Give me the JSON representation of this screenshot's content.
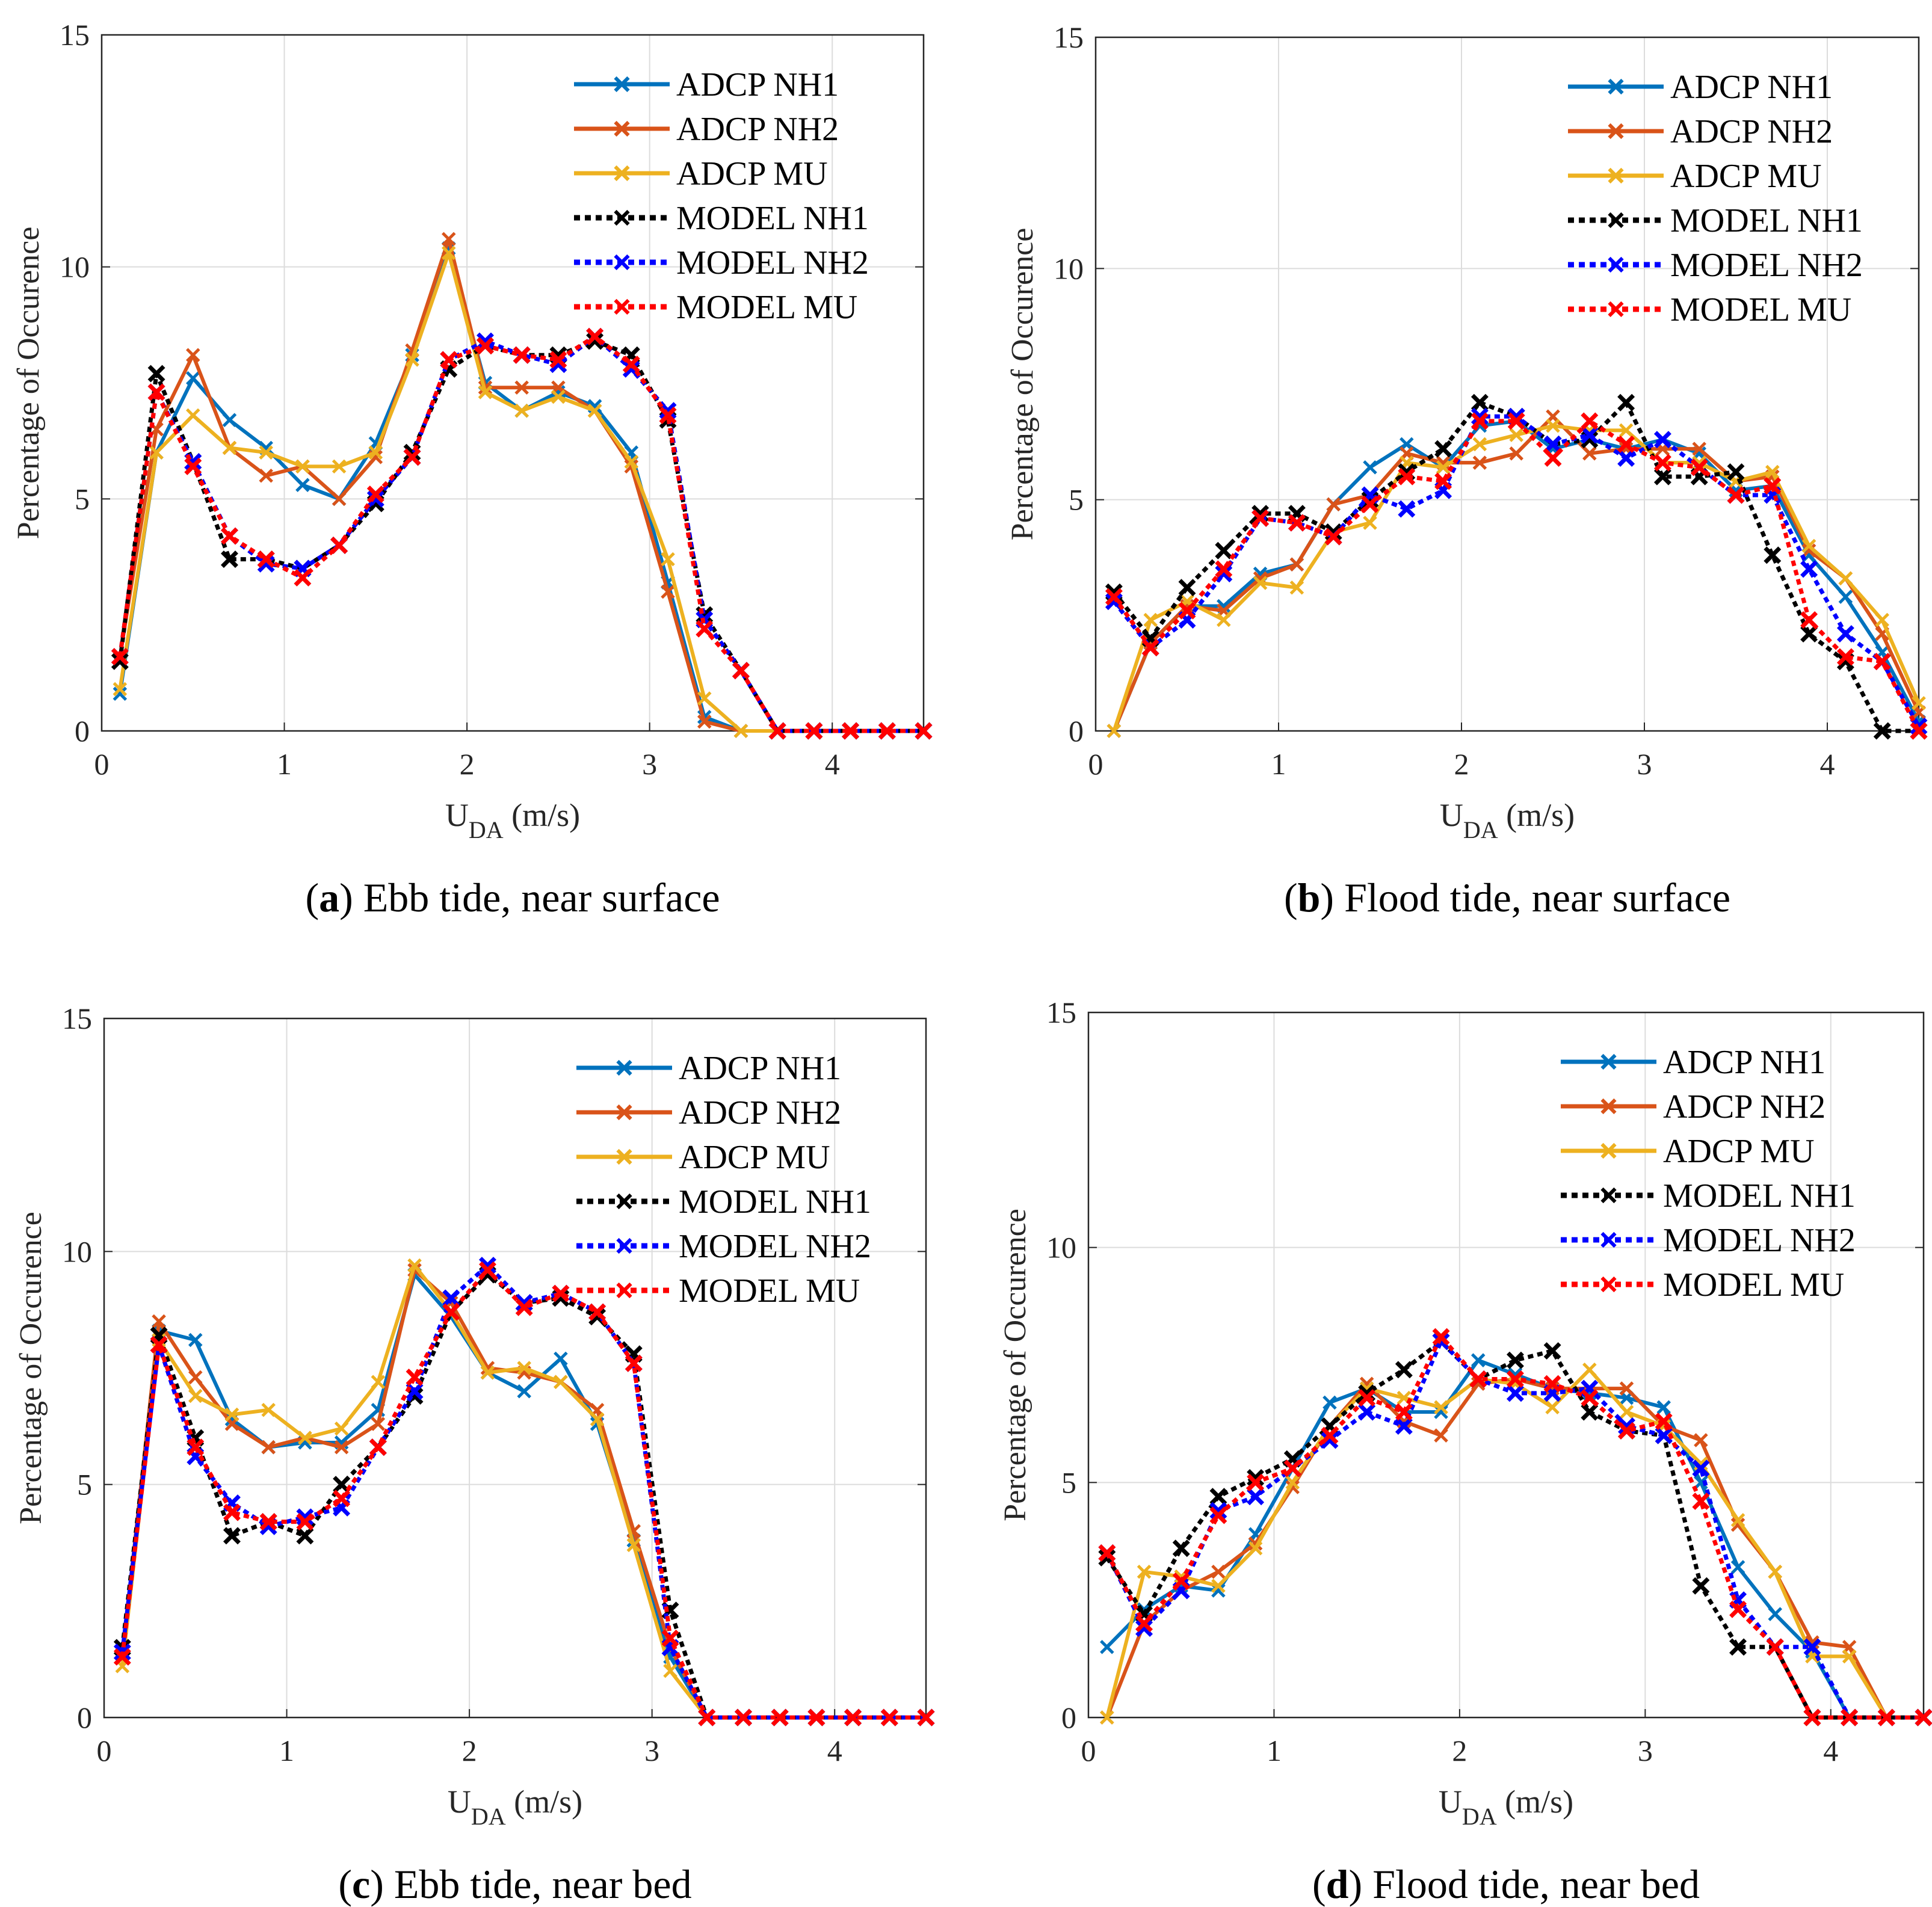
{
  "chart_data": [
    {
      "id": "a",
      "type": "line",
      "caption_letter": "a",
      "caption_text": " Ebb tide, near surface",
      "xlabel_main": "U",
      "xlabel_sub": "DA",
      "xlabel_unit": " (m/s)",
      "ylabel": "Percentage of Occurence",
      "xlim": [
        0,
        4.5
      ],
      "ylim": [
        0,
        15
      ],
      "xticks": [
        0,
        1,
        2,
        3,
        4
      ],
      "yticks": [
        0,
        5,
        10,
        15
      ],
      "grid": true,
      "legend_position": "top-right",
      "x": [
        0.1,
        0.3,
        0.5,
        0.7,
        0.9,
        1.1,
        1.3,
        1.5,
        1.7,
        1.9,
        2.1,
        2.3,
        2.5,
        2.7,
        2.9,
        3.1,
        3.3,
        3.5,
        3.7,
        3.9,
        4.1,
        4.3,
        4.5
      ],
      "series": [
        {
          "name": "ADCP NH1",
          "color": "#0072BD",
          "style": "solid",
          "values": [
            0.8,
            6.0,
            7.6,
            6.7,
            6.1,
            5.3,
            5.0,
            6.2,
            8.1,
            10.4,
            7.5,
            6.9,
            7.3,
            7.0,
            6.0,
            3.2,
            0.3,
            0,
            0,
            0,
            0,
            0,
            0
          ]
        },
        {
          "name": "ADCP NH2",
          "color": "#D95319",
          "style": "solid",
          "values": [
            1.6,
            6.5,
            8.1,
            6.1,
            5.5,
            5.7,
            5.0,
            5.9,
            8.2,
            10.6,
            7.4,
            7.4,
            7.4,
            6.9,
            5.7,
            3.0,
            0.2,
            0,
            0,
            0,
            0,
            0,
            0
          ]
        },
        {
          "name": "ADCP MU",
          "color": "#EDB120",
          "style": "solid",
          "values": [
            0.9,
            6.0,
            6.8,
            6.1,
            6.0,
            5.7,
            5.7,
            6.0,
            8.0,
            10.3,
            7.3,
            6.9,
            7.2,
            6.9,
            5.8,
            3.7,
            0.7,
            0,
            0,
            0,
            0,
            0,
            0
          ]
        },
        {
          "name": "MODEL NH1",
          "color": "#000000",
          "style": "dotted",
          "values": [
            1.5,
            7.7,
            5.8,
            3.7,
            3.7,
            3.5,
            4.0,
            4.9,
            6.0,
            7.8,
            8.3,
            8.1,
            8.1,
            8.4,
            8.1,
            6.7,
            2.5,
            1.3,
            0,
            0,
            0,
            0,
            0
          ]
        },
        {
          "name": "MODEL NH2",
          "color": "#0000FF",
          "style": "dotted",
          "values": [
            1.6,
            7.3,
            5.8,
            4.2,
            3.6,
            3.5,
            4.0,
            5.0,
            5.9,
            8.0,
            8.4,
            8.1,
            7.9,
            8.5,
            7.8,
            6.9,
            2.4,
            1.3,
            0,
            0,
            0,
            0,
            0
          ]
        },
        {
          "name": "MODEL MU",
          "color": "#FF0000",
          "style": "dotted",
          "values": [
            1.6,
            7.3,
            5.7,
            4.2,
            3.7,
            3.3,
            4.0,
            5.1,
            5.9,
            8.0,
            8.3,
            8.1,
            8.0,
            8.5,
            7.9,
            6.8,
            2.2,
            1.3,
            0,
            0,
            0,
            0,
            0
          ]
        }
      ]
    },
    {
      "id": "b",
      "type": "line",
      "caption_letter": "b",
      "caption_text": " Flood tide, near surface",
      "xlabel_main": "U",
      "xlabel_sub": "DA",
      "xlabel_unit": " (m/s)",
      "ylabel": "Percentage of Occurence",
      "xlim": [
        0,
        4.5
      ],
      "ylim": [
        0,
        15
      ],
      "xticks": [
        0,
        1,
        2,
        3,
        4
      ],
      "yticks": [
        0,
        5,
        10,
        15
      ],
      "grid": true,
      "legend_position": "top-right",
      "x": [
        0.1,
        0.3,
        0.5,
        0.7,
        0.9,
        1.1,
        1.3,
        1.5,
        1.7,
        1.9,
        2.1,
        2.3,
        2.5,
        2.7,
        2.9,
        3.1,
        3.3,
        3.5,
        3.7,
        3.9,
        4.1,
        4.3,
        4.5
      ],
      "series": [
        {
          "name": "ADCP NH1",
          "color": "#0072BD",
          "style": "solid",
          "values": [
            0,
            1.9,
            2.7,
            2.7,
            3.4,
            3.6,
            4.9,
            5.7,
            6.2,
            5.7,
            6.6,
            6.7,
            6.1,
            6.3,
            6.1,
            6.3,
            6.0,
            5.2,
            5.3,
            3.8,
            2.9,
            1.7,
            0.2
          ]
        },
        {
          "name": "ADCP NH2",
          "color": "#D95319",
          "style": "solid",
          "values": [
            0,
            1.9,
            2.7,
            2.6,
            3.3,
            3.6,
            4.9,
            5.1,
            6.0,
            5.8,
            5.8,
            6.0,
            6.8,
            6.0,
            6.1,
            6.1,
            6.1,
            5.4,
            5.5,
            3.9,
            3.3,
            2.1,
            0.4
          ]
        },
        {
          "name": "ADCP MU",
          "color": "#EDB120",
          "style": "solid",
          "values": [
            0,
            2.4,
            2.8,
            2.4,
            3.2,
            3.1,
            4.3,
            4.5,
            5.8,
            5.7,
            6.2,
            6.4,
            6.6,
            6.5,
            6.5,
            5.8,
            5.8,
            5.4,
            5.6,
            4.0,
            3.3,
            2.4,
            0.6
          ]
        },
        {
          "name": "MODEL NH1",
          "color": "#000000",
          "style": "dotted",
          "values": [
            3.0,
            2.0,
            3.1,
            3.9,
            4.7,
            4.7,
            4.3,
            5.0,
            5.6,
            6.1,
            7.1,
            6.8,
            6.2,
            6.3,
            7.1,
            5.5,
            5.5,
            5.6,
            3.8,
            2.1,
            1.5,
            0,
            0
          ]
        },
        {
          "name": "MODEL NH2",
          "color": "#0000FF",
          "style": "dotted",
          "values": [
            2.8,
            1.8,
            2.4,
            3.4,
            4.6,
            4.5,
            4.2,
            5.1,
            4.8,
            5.2,
            6.8,
            6.8,
            6.2,
            6.4,
            5.9,
            6.3,
            5.7,
            5.1,
            5.1,
            3.5,
            2.1,
            1.5,
            0.1
          ]
        },
        {
          "name": "MODEL MU",
          "color": "#FF0000",
          "style": "dotted",
          "values": [
            2.9,
            1.8,
            2.6,
            3.5,
            4.6,
            4.5,
            4.2,
            4.9,
            5.5,
            5.4,
            6.7,
            6.7,
            5.9,
            6.7,
            6.2,
            5.8,
            5.7,
            5.1,
            5.3,
            2.4,
            1.6,
            1.5,
            0
          ]
        }
      ]
    },
    {
      "id": "c",
      "type": "line",
      "caption_letter": "c",
      "caption_text": " Ebb tide, near bed",
      "xlabel_main": "U",
      "xlabel_sub": "DA",
      "xlabel_unit": " (m/s)",
      "ylabel": "Percentage of Occurence",
      "xlim": [
        0,
        4.5
      ],
      "ylim": [
        0,
        15
      ],
      "xticks": [
        0,
        1,
        2,
        3,
        4
      ],
      "yticks": [
        0,
        5,
        10,
        15
      ],
      "grid": true,
      "legend_position": "top-right",
      "x": [
        0.1,
        0.3,
        0.5,
        0.7,
        0.9,
        1.1,
        1.3,
        1.5,
        1.7,
        1.9,
        2.1,
        2.3,
        2.5,
        2.7,
        2.9,
        3.1,
        3.3,
        3.5,
        3.7,
        3.9,
        4.1,
        4.3,
        4.5
      ],
      "series": [
        {
          "name": "ADCP NH1",
          "color": "#0072BD",
          "style": "solid",
          "values": [
            1.3,
            8.3,
            8.1,
            6.4,
            5.8,
            5.9,
            5.9,
            6.6,
            9.5,
            8.6,
            7.4,
            7.0,
            7.7,
            6.3,
            3.8,
            1.3,
            0,
            0,
            0,
            0,
            0,
            0,
            0
          ]
        },
        {
          "name": "ADCP NH2",
          "color": "#D95319",
          "style": "solid",
          "values": [
            1.3,
            8.5,
            7.3,
            6.3,
            5.8,
            6.0,
            5.8,
            6.3,
            9.6,
            8.9,
            7.5,
            7.4,
            7.2,
            6.6,
            4.0,
            1.5,
            0,
            0,
            0,
            0,
            0,
            0,
            0
          ]
        },
        {
          "name": "ADCP MU",
          "color": "#EDB120",
          "style": "solid",
          "values": [
            1.1,
            8.1,
            6.9,
            6.5,
            6.6,
            6.0,
            6.2,
            7.2,
            9.7,
            8.7,
            7.4,
            7.5,
            7.2,
            6.4,
            3.7,
            1.0,
            0,
            0,
            0,
            0,
            0,
            0,
            0
          ]
        },
        {
          "name": "MODEL NH1",
          "color": "#000000",
          "style": "dotted",
          "values": [
            1.5,
            8.2,
            6.0,
            3.9,
            4.2,
            3.9,
            5.0,
            5.8,
            6.9,
            8.7,
            9.5,
            8.9,
            9.0,
            8.6,
            7.8,
            2.3,
            0,
            0,
            0,
            0,
            0,
            0,
            0
          ]
        },
        {
          "name": "MODEL NH2",
          "color": "#0000FF",
          "style": "dotted",
          "values": [
            1.4,
            8.0,
            5.6,
            4.6,
            4.1,
            4.3,
            4.5,
            5.8,
            7.0,
            9.0,
            9.7,
            8.9,
            9.1,
            8.7,
            7.6,
            1.5,
            0,
            0,
            0,
            0,
            0,
            0,
            0
          ]
        },
        {
          "name": "MODEL MU",
          "color": "#FF0000",
          "style": "dotted",
          "values": [
            1.3,
            8.0,
            5.8,
            4.4,
            4.2,
            4.2,
            4.7,
            5.8,
            7.3,
            8.7,
            9.6,
            8.8,
            9.1,
            8.7,
            7.6,
            1.7,
            0,
            0,
            0,
            0,
            0,
            0,
            0
          ]
        }
      ]
    },
    {
      "id": "d",
      "type": "line",
      "caption_letter": "d",
      "caption_text": " Flood tide, near bed",
      "xlabel_main": "U",
      "xlabel_sub": "DA",
      "xlabel_unit": " (m/s)",
      "ylabel": "Percentage of Occurence",
      "xlim": [
        0,
        4.5
      ],
      "ylim": [
        0,
        15
      ],
      "xticks": [
        0,
        1,
        2,
        3,
        4
      ],
      "yticks": [
        0,
        5,
        10,
        15
      ],
      "grid": true,
      "legend_position": "top-right",
      "x": [
        0.1,
        0.3,
        0.5,
        0.7,
        0.9,
        1.1,
        1.3,
        1.5,
        1.7,
        1.9,
        2.1,
        2.3,
        2.5,
        2.7,
        2.9,
        3.1,
        3.3,
        3.5,
        3.7,
        3.9,
        4.1,
        4.3,
        4.5
      ],
      "series": [
        {
          "name": "ADCP NH1",
          "color": "#0072BD",
          "style": "solid",
          "values": [
            1.5,
            2.3,
            2.8,
            2.7,
            3.9,
            5.3,
            6.7,
            7.0,
            6.5,
            6.5,
            7.6,
            7.3,
            7.0,
            6.9,
            6.8,
            6.6,
            5.0,
            3.2,
            2.2,
            1.4,
            0,
            0,
            0
          ]
        },
        {
          "name": "ADCP NH2",
          "color": "#D95319",
          "style": "solid",
          "values": [
            0,
            2.0,
            2.7,
            3.1,
            3.7,
            4.9,
            6.2,
            7.1,
            6.3,
            6.0,
            7.1,
            7.2,
            7.0,
            7.0,
            7.0,
            6.2,
            5.9,
            4.1,
            3.1,
            1.6,
            1.5,
            0,
            0
          ]
        },
        {
          "name": "ADCP MU",
          "color": "#EDB120",
          "style": "solid",
          "values": [
            0,
            3.1,
            3.0,
            2.8,
            3.6,
            5.0,
            6.2,
            7.0,
            6.8,
            6.6,
            7.2,
            7.1,
            6.6,
            7.4,
            6.5,
            6.2,
            5.4,
            4.2,
            3.1,
            1.3,
            1.3,
            0,
            0
          ]
        },
        {
          "name": "MODEL NH1",
          "color": "#000000",
          "style": "dotted",
          "values": [
            3.4,
            2.2,
            3.6,
            4.7,
            5.1,
            5.5,
            6.2,
            6.9,
            7.4,
            8.0,
            7.2,
            7.6,
            7.8,
            6.5,
            6.1,
            6.0,
            2.8,
            1.5,
            1.5,
            0,
            0,
            0,
            0
          ]
        },
        {
          "name": "MODEL NH2",
          "color": "#0000FF",
          "style": "dotted",
          "values": [
            3.5,
            1.9,
            2.7,
            4.4,
            4.7,
            5.3,
            5.9,
            6.5,
            6.2,
            8.0,
            7.2,
            6.9,
            6.9,
            7.0,
            6.2,
            6.0,
            5.3,
            2.5,
            1.5,
            1.5,
            0,
            0,
            0
          ]
        },
        {
          "name": "MODEL MU",
          "color": "#FF0000",
          "style": "dotted",
          "values": [
            3.5,
            2.0,
            2.9,
            4.3,
            5.0,
            5.3,
            6.0,
            6.8,
            6.5,
            8.1,
            7.2,
            7.2,
            7.1,
            6.8,
            6.1,
            6.3,
            4.6,
            2.3,
            1.5,
            0,
            0,
            0,
            0
          ]
        }
      ]
    }
  ]
}
